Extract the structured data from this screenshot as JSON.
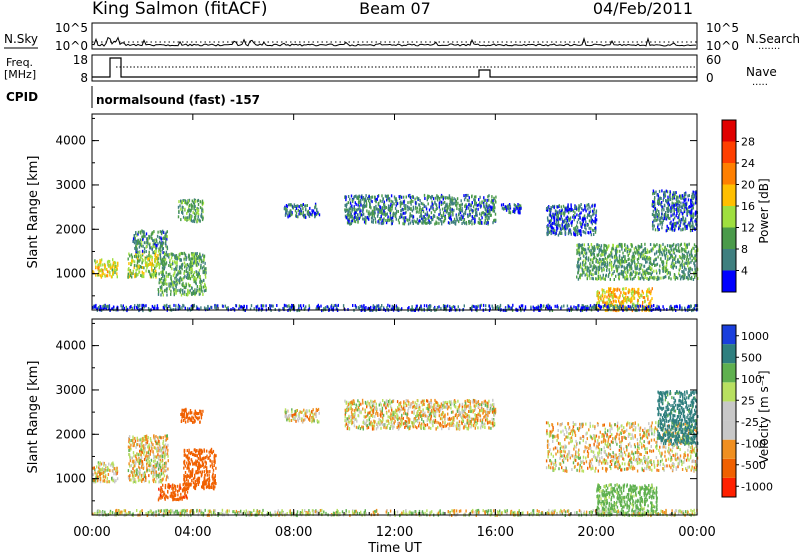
{
  "header": {
    "station": "King Salmon (fitACF)",
    "beam": "Beam 07",
    "date": "04/Feb/2011"
  },
  "noise_panel": {
    "left_label": "N.Sky",
    "right_label": "N.Search",
    "right_legend_line": "·······",
    "ticks_left": [
      "10^5",
      "10^0"
    ],
    "ticks_right": [
      "10^5",
      "10^0"
    ]
  },
  "freq_panel": {
    "left_label_top": "Freq.",
    "left_label_bottom": "[MHz]",
    "right_label": "Nave",
    "right_legend_line": "·····",
    "ticks_left": [
      "18",
      "8"
    ],
    "ticks_right": [
      "60",
      "0"
    ]
  },
  "cpid_panel": {
    "label": "CPID",
    "program": "normalsound (fast) -157"
  },
  "colors": {
    "power_scale": [
      "#0000ff",
      "#3f7f7f",
      "#4a9a4a",
      "#9fdf3f",
      "#ffbf00",
      "#ff7f00",
      "#ff3f00",
      "#e00000"
    ],
    "velocity_scale": [
      "#1a3fdd",
      "#2f7f7f",
      "#5fb04f",
      "#b8e060",
      "#c8c8c8",
      "#c8c8c8",
      "#f08f20",
      "#f06000",
      "#ff2000"
    ]
  },
  "chart_data": [
    {
      "type": "heatmap",
      "panel": "power",
      "ylabel": "Slant Range [km]",
      "xlabel": "",
      "x_ticks": [
        "00:00",
        "04:00",
        "08:00",
        "12:00",
        "16:00",
        "20:00",
        "00:00"
      ],
      "y_ticks": [
        "1000",
        "2000",
        "3000",
        "4000"
      ],
      "xlim_hours": [
        0,
        24
      ],
      "ylim_km": [
        180,
        4600
      ],
      "colorbar": {
        "label": "Power [dB]",
        "ticks": [
          "4",
          "8",
          "12",
          "16",
          "20",
          "24",
          "28"
        ],
        "range": [
          0,
          30
        ]
      },
      "scatter_regions": [
        {
          "time_range_h": [
            0.0,
            1.0
          ],
          "range_km": [
            950,
            1350
          ],
          "value_dB": 16
        },
        {
          "time_range_h": [
            1.4,
            2.6
          ],
          "range_km": [
            950,
            1500
          ],
          "value_dB": 14
        },
        {
          "time_range_h": [
            1.6,
            3.0
          ],
          "range_km": [
            1500,
            2000
          ],
          "value_dB": 8
        },
        {
          "time_range_h": [
            2.6,
            4.5
          ],
          "range_km": [
            550,
            1500
          ],
          "value_dB": 10
        },
        {
          "time_range_h": [
            3.4,
            4.4
          ],
          "range_km": [
            2200,
            2700
          ],
          "value_dB": 10
        },
        {
          "time_range_h": [
            7.6,
            9.0
          ],
          "range_km": [
            2300,
            2600
          ],
          "value_dB": 6
        },
        {
          "time_range_h": [
            10.0,
            16.0
          ],
          "range_km": [
            2150,
            2800
          ],
          "value_dB": 7
        },
        {
          "time_range_h": [
            16.2,
            17.0
          ],
          "range_km": [
            2400,
            2600
          ],
          "value_dB": 6
        },
        {
          "time_range_h": [
            18.0,
            20.0
          ],
          "range_km": [
            1900,
            2600
          ],
          "value_dB": 5
        },
        {
          "time_range_h": [
            19.2,
            24.0
          ],
          "range_km": [
            900,
            1700
          ],
          "value_dB": 9
        },
        {
          "time_range_h": [
            20.0,
            22.2
          ],
          "range_km": [
            200,
            700
          ],
          "value_dB": 18
        },
        {
          "time_range_h": [
            22.2,
            24.0
          ],
          "range_km": [
            2000,
            2900
          ],
          "value_dB": 6
        },
        {
          "time_range_h": [
            0.0,
            24.0
          ],
          "range_km": [
            200,
            320
          ],
          "value_dB": 4
        }
      ]
    },
    {
      "type": "heatmap",
      "panel": "velocity",
      "ylabel": "Slant Range [km]",
      "xlabel": "Time UT",
      "x_ticks": [
        "00:00",
        "04:00",
        "08:00",
        "12:00",
        "16:00",
        "20:00",
        "00:00"
      ],
      "y_ticks": [
        "1000",
        "2000",
        "3000",
        "4000"
      ],
      "xlim_hours": [
        0,
        24
      ],
      "ylim_km": [
        180,
        4600
      ],
      "colorbar": {
        "label": "Velocity [m s⁻¹]",
        "ticks": [
          "1000",
          "500",
          "100",
          "25",
          "-25",
          "-100",
          "-500",
          "-1000"
        ]
      },
      "scatter_regions": [
        {
          "time_range_h": [
            0.0,
            1.0
          ],
          "range_km": [
            950,
            1400
          ],
          "value_ms": 0
        },
        {
          "time_range_h": [
            1.4,
            3.0
          ],
          "range_km": [
            950,
            2000
          ],
          "value_ms": 0
        },
        {
          "time_range_h": [
            3.6,
            4.9
          ],
          "range_km": [
            800,
            1700
          ],
          "value_ms": -300
        },
        {
          "time_range_h": [
            2.6,
            3.8
          ],
          "range_km": [
            550,
            900
          ],
          "value_ms": -400
        },
        {
          "time_range_h": [
            3.5,
            4.4
          ],
          "range_km": [
            2300,
            2600
          ],
          "value_ms": -300
        },
        {
          "time_range_h": [
            7.6,
            9.0
          ],
          "range_km": [
            2300,
            2600
          ],
          "value_ms": 0
        },
        {
          "time_range_h": [
            10.0,
            16.0
          ],
          "range_km": [
            2150,
            2800
          ],
          "value_ms": 0
        },
        {
          "time_range_h": [
            18.0,
            24.0
          ],
          "range_km": [
            1200,
            2300
          ],
          "value_ms": 0
        },
        {
          "time_range_h": [
            20.0,
            22.4
          ],
          "range_km": [
            200,
            900
          ],
          "value_ms": 200
        },
        {
          "time_range_h": [
            22.4,
            24.0
          ],
          "range_km": [
            1800,
            3000
          ],
          "value_ms": 600
        },
        {
          "time_range_h": [
            0.0,
            24.0
          ],
          "range_km": [
            200,
            320
          ],
          "value_ms": 50
        }
      ]
    }
  ]
}
